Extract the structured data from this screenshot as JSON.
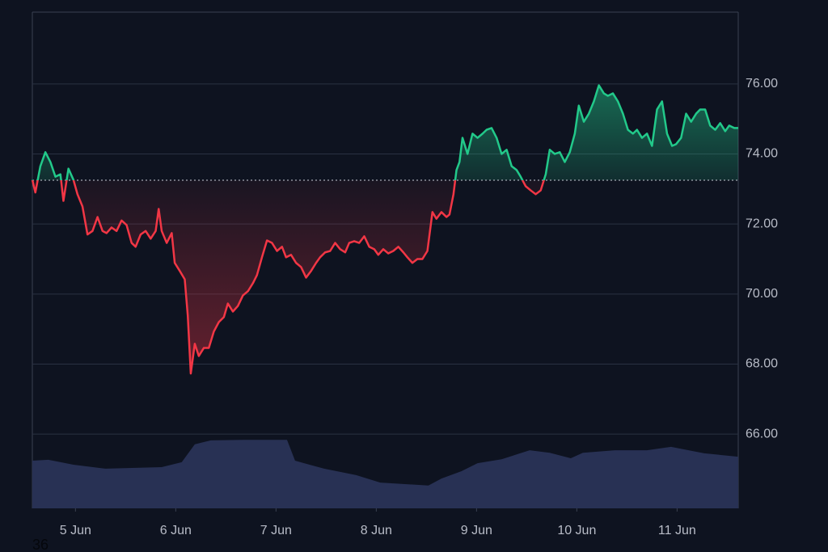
{
  "chart_data": {
    "type": "baseline",
    "annotation": "36",
    "x": [
      4.57,
      4.6,
      4.65,
      4.7,
      4.75,
      4.8,
      4.85,
      4.88,
      4.93,
      4.98,
      5.02,
      5.07,
      5.12,
      5.17,
      5.22,
      5.27,
      5.31,
      5.36,
      5.41,
      5.46,
      5.51,
      5.56,
      5.6,
      5.65,
      5.7,
      5.75,
      5.8,
      5.83,
      5.86,
      5.91,
      5.96,
      5.99,
      6.04,
      6.09,
      6.12,
      6.15,
      6.19,
      6.23,
      6.28,
      6.33,
      6.38,
      6.43,
      6.48,
      6.52,
      6.57,
      6.62,
      6.67,
      6.72,
      6.77,
      6.81,
      6.86,
      6.91,
      6.96,
      7.01,
      7.06,
      7.1,
      7.15,
      7.2,
      7.25,
      7.3,
      7.35,
      7.4,
      7.44,
      7.49,
      7.54,
      7.59,
      7.64,
      7.69,
      7.73,
      7.78,
      7.83,
      7.88,
      7.93,
      7.98,
      8.02,
      8.07,
      8.12,
      8.17,
      8.22,
      8.27,
      8.31,
      8.36,
      8.41,
      8.46,
      8.51,
      8.56,
      8.6,
      8.65,
      8.7,
      8.73,
      8.77,
      8.8,
      8.83,
      8.86,
      8.91,
      8.96,
      9.01,
      9.06,
      9.1,
      9.15,
      9.2,
      9.25,
      9.3,
      9.35,
      9.4,
      9.44,
      9.49,
      9.54,
      9.59,
      9.64,
      9.69,
      9.73,
      9.78,
      9.83,
      9.88,
      9.93,
      9.98,
      10.02,
      10.07,
      10.12,
      10.17,
      10.22,
      10.27,
      10.31,
      10.36,
      10.41,
      10.46,
      10.51,
      10.56,
      10.6,
      10.65,
      10.7,
      10.75,
      10.8,
      10.85,
      10.9,
      10.95,
      10.99,
      11.04,
      11.09,
      11.14,
      11.19,
      11.23,
      11.28,
      11.33,
      11.38,
      11.43,
      11.48,
      11.52,
      11.57,
      11.61
    ],
    "series": [
      {
        "color_up": "#22c98a",
        "color_down": "#f23645",
        "values": [
          73.26,
          72.9,
          73.65,
          74.05,
          73.77,
          73.35,
          73.42,
          72.66,
          73.58,
          73.26,
          72.85,
          72.5,
          71.7,
          71.8,
          72.2,
          71.8,
          71.74,
          71.9,
          71.8,
          72.1,
          71.97,
          71.46,
          71.35,
          71.7,
          71.8,
          71.58,
          71.8,
          72.43,
          71.8,
          71.46,
          71.74,
          70.89,
          70.66,
          70.42,
          69.39,
          67.73,
          68.58,
          68.23,
          68.46,
          68.46,
          68.93,
          69.2,
          69.34,
          69.73,
          69.5,
          69.66,
          69.96,
          70.08,
          70.31,
          70.54,
          71.05,
          71.53,
          71.46,
          71.23,
          71.35,
          71.05,
          71.12,
          70.89,
          70.77,
          70.47,
          70.66,
          70.89,
          71.05,
          71.19,
          71.23,
          71.46,
          71.28,
          71.19,
          71.46,
          71.51,
          71.46,
          71.65,
          71.35,
          71.28,
          71.12,
          71.28,
          71.16,
          71.23,
          71.35,
          71.19,
          71.05,
          70.89,
          71.0,
          71.0,
          71.23,
          72.34,
          72.15,
          72.34,
          72.2,
          72.27,
          72.85,
          73.54,
          73.77,
          74.46,
          74.0,
          74.58,
          74.46,
          74.58,
          74.69,
          74.74,
          74.46,
          74.0,
          74.12,
          73.65,
          73.54,
          73.35,
          73.08,
          72.96,
          72.85,
          72.96,
          73.42,
          74.12,
          74.0,
          74.05,
          73.77,
          74.05,
          74.58,
          75.38,
          74.92,
          75.15,
          75.5,
          75.96,
          75.73,
          75.66,
          75.73,
          75.5,
          75.15,
          74.69,
          74.58,
          74.69,
          74.46,
          74.58,
          74.23,
          75.27,
          75.5,
          74.58,
          74.23,
          74.28,
          74.46,
          75.15,
          74.92,
          75.15,
          75.27,
          75.27,
          74.81,
          74.69,
          74.88,
          74.65,
          74.81,
          74.74,
          74.74
        ]
      }
    ],
    "baseline": 73.25,
    "volume": {
      "axis": "y2",
      "color": "#283154",
      "x": [
        4.57,
        4.73,
        4.98,
        5.3,
        5.86,
        6.06,
        6.19,
        6.35,
        6.67,
        7.11,
        7.19,
        7.48,
        7.8,
        8.04,
        8.52,
        8.65,
        8.85,
        9.01,
        9.25,
        9.53,
        9.73,
        9.94,
        10.06,
        10.38,
        10.7,
        10.94,
        11.27,
        11.61
      ],
      "values": [
        9.6,
        9.8,
        8.8,
        8.0,
        8.3,
        9.3,
        12.9,
        13.7,
        13.8,
        13.8,
        9.6,
        8.0,
        6.7,
        5.2,
        4.6,
        6.0,
        7.5,
        9.1,
        9.9,
        11.7,
        11.2,
        10.1,
        11.2,
        11.7,
        11.7,
        12.4,
        11.1,
        10.4
      ]
    },
    "xlim": [
      4.57,
      11.61
    ],
    "xticks": [
      {
        "value": 5,
        "label": "5 Jun"
      },
      {
        "value": 6,
        "label": "6 Jun"
      },
      {
        "value": 7,
        "label": "7 Jun"
      },
      {
        "value": 8,
        "label": "8 Jun"
      },
      {
        "value": 9,
        "label": "9 Jun"
      },
      {
        "value": 10,
        "label": "10 Jun"
      },
      {
        "value": 11,
        "label": "11 Jun"
      }
    ],
    "ylim": [
      63.88,
      78.05
    ],
    "yticks": [
      {
        "value": 66,
        "label": "66.00"
      },
      {
        "value": 68,
        "label": "68.00"
      },
      {
        "value": 70,
        "label": "70.00"
      },
      {
        "value": 72,
        "label": "72.00"
      },
      {
        "value": 74,
        "label": "74.00"
      },
      {
        "value": 76,
        "label": "76.00"
      }
    ],
    "y2lim": [
      0,
      100
    ],
    "grid": true
  }
}
